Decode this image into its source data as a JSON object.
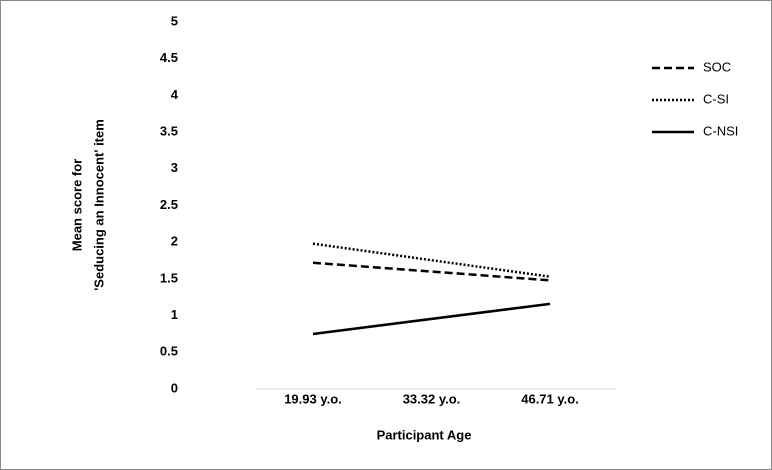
{
  "chart_data": {
    "type": "line",
    "y_label": [
      "Mean score for",
      "'Seducing an Innocent' item"
    ],
    "x_label": "Participant Age",
    "x": [
      19.93,
      46.71
    ],
    "xlim": [
      13.38,
      54.05
    ],
    "xticks": [
      {
        "value": 19.93,
        "label": "19.93 y.o."
      },
      {
        "value": 33.32,
        "label": "33.32 y.o."
      },
      {
        "value": 46.71,
        "label": "46.71 y.o."
      }
    ],
    "ylim": [
      0,
      5
    ],
    "yticks": [
      0,
      0.5,
      1,
      1.5,
      2,
      2.5,
      3,
      3.5,
      4,
      4.5,
      5
    ],
    "legend": "right",
    "series": [
      {
        "name": "SOC",
        "color": "#000000",
        "dash": "dashed",
        "values": [
          1.72,
          1.48
        ]
      },
      {
        "name": "C-SI",
        "color": "#000000",
        "dash": "dotted",
        "values": [
          1.98,
          1.53
        ]
      },
      {
        "name": "C-NSI",
        "color": "#000000",
        "dash": "solid",
        "values": [
          0.75,
          1.16
        ]
      }
    ]
  }
}
